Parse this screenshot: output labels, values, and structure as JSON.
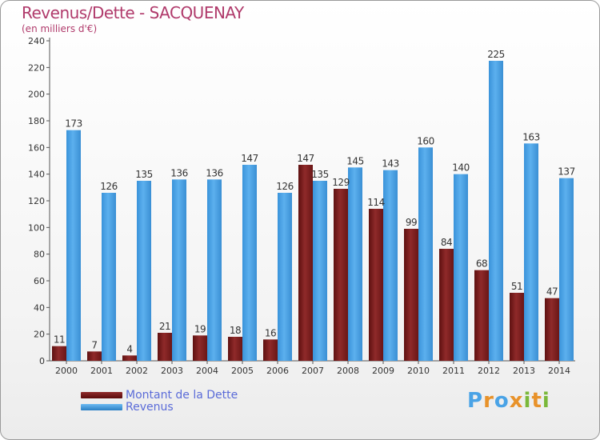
{
  "header": {
    "title": "Revenus/Dette - SACQUENAY",
    "subtitle": "(en milliers d'€)"
  },
  "colors": {
    "dette": "#7a1d1d",
    "dette_light": "#8f2a2a",
    "revenus": "#4aa3e6",
    "revenus_dark": "#2a7fc4",
    "axis_text": "#333333"
  },
  "chart_data": {
    "type": "bar",
    "title": "Revenus/Dette - SACQUENAY",
    "subtitle": "(en milliers d'€)",
    "categories": [
      "2000",
      "2001",
      "2002",
      "2003",
      "2004",
      "2005",
      "2006",
      "2007",
      "2008",
      "2009",
      "2010",
      "2011",
      "2012",
      "2013",
      "2014"
    ],
    "series": [
      {
        "name": "Montant de la Dette",
        "values": [
          11,
          7,
          4,
          21,
          19,
          18,
          16,
          147,
          129,
          114,
          99,
          84,
          68,
          51,
          47
        ]
      },
      {
        "name": "Revenus",
        "values": [
          173,
          126,
          135,
          136,
          136,
          147,
          126,
          135,
          145,
          143,
          160,
          140,
          225,
          163,
          137
        ]
      }
    ],
    "ylim": [
      0,
      240
    ],
    "yticks": [
      0,
      20,
      40,
      60,
      80,
      100,
      120,
      140,
      160,
      180,
      200,
      220,
      240
    ],
    "grid": false,
    "legend_position": "bottom-left"
  },
  "legend": {
    "items": [
      {
        "label": "Montant de la Dette"
      },
      {
        "label": "Revenus"
      }
    ]
  },
  "logo": {
    "letters": [
      "P",
      "r",
      "o",
      "x",
      "i",
      "t",
      "i"
    ],
    "colors": [
      "#4aa3e6",
      "#e8922a",
      "#4aa3e6",
      "#e8922a",
      "#7ab83a",
      "#e8922a",
      "#7ab83a"
    ]
  }
}
